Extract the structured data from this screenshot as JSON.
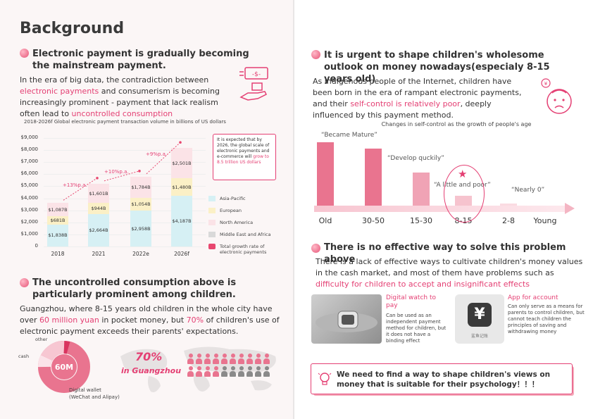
{
  "colors": {
    "accent": "#e43f73",
    "asia": "#d6f0f4",
    "europe": "#fbf0c6",
    "north_america": "#fbe3e7",
    "middle_east": "#d9d9d9",
    "rate": "#e8476f"
  },
  "left": {
    "heading": "Background",
    "section1": {
      "title": "Electronic payment is gradually becoming the mainstream payment.",
      "body_parts": [
        "In the era of big data, the contradiction between ",
        "electronic payments",
        " and consumerism is becoming increasingly prominent - payment that lack realism often lead to ",
        "uncontrolled consumption"
      ],
      "chart_caption": "2018-2026f Global electronic payment transaction volume in billions of US dollars",
      "callout_text": "It is expected that by 2026, the global scale of electronic payments and e-commerce will ",
      "callout_highlight": "grow to 8.5 trillion US dollars",
      "icons": [
        "cash-icon",
        "hand-holding-box-icon"
      ]
    },
    "section2": {
      "title": "The uncontrolled consumption above is particularly prominent among children.",
      "body_parts": [
        "Guangzhou, where 8-15 years old children in the whole city have over ",
        "60 million yuan",
        " in pocket money, but ",
        "70%",
        " of children's use of electronic payment exceeds their parents' expectations."
      ],
      "donut_center": "60M",
      "donut_labels": {
        "other": "other",
        "cash": "cash",
        "digital": "Digital wallet",
        "digital_sub": "(WeChat and Alipay)"
      },
      "stat_big": "70%",
      "stat_sub": "in Guangzhou"
    }
  },
  "chart_data": {
    "type": "bar",
    "title": "2018-2026f Global electronic payment transaction volume in billions of US dollars",
    "categories": [
      "2018",
      "2021",
      "2022e",
      "2026f"
    ],
    "yticks": [
      "$9,000",
      "$8,000",
      "$7,000",
      "$6,000",
      "$5,000",
      "$4,000",
      "$3,000",
      "$2,000",
      "$1,000",
      "0"
    ],
    "ylim": [
      0,
      9000
    ],
    "stacked": true,
    "series": [
      {
        "name": "Asia-Pacific",
        "values": [
          1838,
          2664,
          2958,
          4187
        ],
        "labels": [
          "$1,838B",
          "$2,664B",
          "$2,958B",
          "$4,187B"
        ]
      },
      {
        "name": "European",
        "values": [
          681,
          944,
          1054,
          1480
        ],
        "labels": [
          "$681B",
          "$944B",
          "$1,054B",
          "$1,480B"
        ]
      },
      {
        "name": "North America",
        "values": [
          1087,
          1601,
          1784,
          2501
        ],
        "labels": [
          "$1,087B",
          "$1,601B",
          "$1,784B",
          "$2,501B"
        ]
      },
      {
        "name": "Middle East and Africa",
        "values": [
          null,
          null,
          null,
          null
        ]
      }
    ],
    "growth_rates": [
      "+13%p.a.",
      "+10%p.a.",
      "+9%p.a."
    ],
    "legend": [
      "Asia-Pacific",
      "European",
      "North America",
      "Middle East and Africa",
      "Total growth rate of electronic payments"
    ],
    "legend_position": "right"
  },
  "right": {
    "section3": {
      "title": "It is urgent to shape children's wholesome outlook on money nowadays(especialy 8-15 years old)",
      "body_parts": [
        "As indigenous people of the Internet, children have been born in the era of rampant electronic payments, and their ",
        "self-control is relatively poor",
        ", deeply influenced by this payment method."
      ],
      "chart_caption": "Changes in self-control as the growth of people's age",
      "ages": [
        "Old",
        "30-50",
        "15-30",
        "8-15",
        "2-8",
        "Young"
      ],
      "self_control": [
        5,
        4.5,
        2.6,
        0.8,
        0.15
      ],
      "annotations": [
        "“Became Mature”",
        "“Develop quckily”",
        "“A little and poor”",
        "“Nearly 0”"
      ]
    },
    "section4": {
      "title": "There is no effective way to solve this problem above",
      "body_parts": [
        "There is a lack of effective ways to cultivate children's money values in the cash market, and most of them have problems such as ",
        "difficulty for children to accept and insignificant effects"
      ],
      "card1_title": "Digital watch to pay",
      "card1_body": "Can be used as an independent payment method for children, but it does not have a binding effect",
      "card2_title": "App for account",
      "card2_body": "Can only serve as a means for parents to control children, but cannot teach children the principles of saving and withdrawing money",
      "app_icon_glyph": "¥",
      "app_icon_label": "鲨鱼记账"
    },
    "conclusion": "We need to find a way to shape children's views on money that is suitable for their psychology！！！"
  }
}
